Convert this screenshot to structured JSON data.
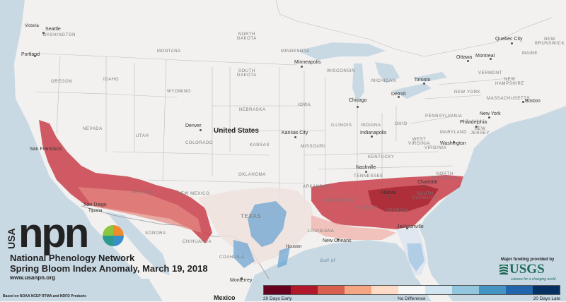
{
  "country_labels": {
    "us": "United States",
    "mexico": "Mexico"
  },
  "state_labels": {
    "washington": "WASHINGTON",
    "oregon": "OREGON",
    "nevada": "NEVADA",
    "idaho": "IDAHO",
    "montana": "MONTANA",
    "wyoming": "WYOMING",
    "utah": "UTAH",
    "colorado": "COLORADO",
    "arizona": "ARIZONA",
    "new_mexico": "NEW MEXICO",
    "north_dakota": "NORTH\nDAKOTA",
    "south_dakota": "SOUTH\nDAKOTA",
    "nebraska": "NEBRASKA",
    "kansas": "KANSAS",
    "oklahoma": "OKLAHOMA",
    "texas": "TEXAS",
    "minnesota": "MINNESOTA",
    "iowa": "IOWA",
    "missouri": "MISSOURI",
    "arkansas": "ARKANSAS",
    "louisiana": "LOUISIANA",
    "wisconsin": "WISCONSIN",
    "michigan": "MICHIGAN",
    "illinois": "ILLINOIS",
    "indiana": "INDIANA",
    "ohio": "OHIO",
    "kentucky": "KENTUCKY",
    "tennessee": "TENNESSEE",
    "mississippi": "MISSISSIPPI",
    "alabama": "ALABAMA",
    "georgia": "GEORGIA",
    "south_carolina": "SOUTH\nCAROLINA",
    "north_carolina": "NORTH\nCAROLINA",
    "virginia": "VIRGINIA",
    "west_virginia": "WEST\nVIRGINIA",
    "pennsylvania": "PENNSYLVANIA",
    "new_york": "NEW YORK",
    "vermont": "VERMONT",
    "new_hampshire": "NEW\nHAMPSHIRE",
    "massachusetts": "MASSACHUSETTS",
    "maryland": "MARYLAND",
    "new_jersey": "NEW\nJERSEY",
    "maine": "MAINE",
    "new_brunswick": "NEW\nBRUNSWICK",
    "sonora": "SONORA",
    "chihuahua": "CHIHUAHUA",
    "coahuila": "COAHUILA",
    "gulf": "Gulf of"
  },
  "city_labels": {
    "seattle": "Seattle",
    "victoria": "Victoria",
    "portland": "Portland",
    "sf": "San Francisco",
    "san_diego": "San Diego",
    "denver": "Denver",
    "minneapolis": "Minneapolis",
    "kansas_city": "Kansas City",
    "chicago": "Chicago",
    "indianapolis": "Indianapolis",
    "detroit": "Detroit",
    "toronto": "Toronto",
    "ottawa": "Ottawa",
    "montreal": "Montreal",
    "quebec": "Quebec City",
    "boston": "Boston",
    "new_york": "New York",
    "philadelphia": "Philadelphia",
    "washington": "Washington",
    "nashville": "Nashville",
    "atlanta": "Atlanta",
    "charlotte": "Charlotte",
    "jacksonville": "Jacksonville",
    "new_orleans": "New Orleans",
    "houston": "Houston",
    "monterrey": "Monterrey",
    "tijuana": "Tijuana"
  },
  "branding": {
    "usa": "USA",
    "npn": "npn",
    "network_name": "National Phenology Network",
    "map_title": "Spring Bloom Index Anomaly, March 19, 2018",
    "website": "www.usanpn.org",
    "source_note": "Based on NOAA NCEP RTMA and NDFD Products"
  },
  "funding": {
    "text": "Major funding provided by",
    "logo": "USGS",
    "tagline": "science for a changing world"
  },
  "legend": {
    "colors": [
      "#67001f",
      "#b2182b",
      "#d6604d",
      "#f4a582",
      "#fddbc7",
      "#f7f7f7",
      "#d1e5f0",
      "#92c5de",
      "#4393c3",
      "#2166ac",
      "#053061"
    ],
    "left_label": "20 Days Early",
    "center_label": "No Difference",
    "right_label": "20 Days Late"
  },
  "colors": {
    "land": "#f2f1ef",
    "water": "#c9d9e4",
    "early": "#c9404a",
    "late": "#6ea6d2"
  }
}
